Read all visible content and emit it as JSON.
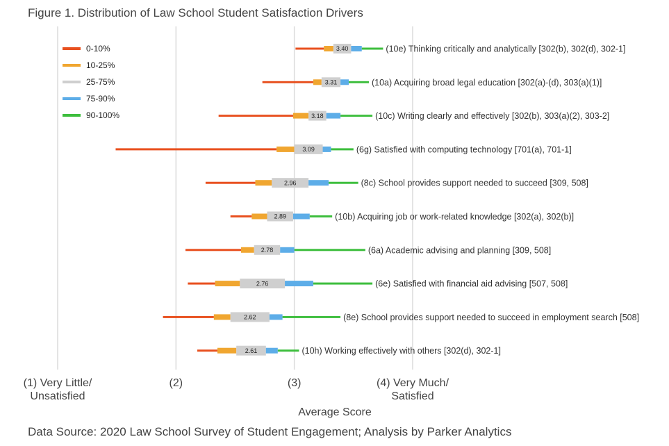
{
  "chart_data": {
    "type": "bar",
    "subtype": "percentile-range",
    "title": "Figure 1. Distribution of Law School Student Satisfaction Drivers",
    "xlabel": "Average Score",
    "source": "Data Source: 2020 Law School Survey of Student Engagement; Analysis by Parker Analytics",
    "xlim": [
      1,
      4
    ],
    "grid": "vertical",
    "legend_position": "top-left",
    "x_ticks": [
      {
        "value": 1,
        "label_lines": [
          "(1) Very Little/",
          "Unsatisfied"
        ]
      },
      {
        "value": 2,
        "label_lines": [
          "(2)"
        ]
      },
      {
        "value": 3,
        "label_lines": [
          "(3)"
        ]
      },
      {
        "value": 4,
        "label_lines": [
          "(4) Very Much/",
          "Satisfied"
        ]
      }
    ],
    "legend": [
      {
        "label": "0-10%",
        "color": "#E8501F"
      },
      {
        "label": "10-25%",
        "color": "#F0A630"
      },
      {
        "label": "25-75%",
        "color": "#CFCFCF"
      },
      {
        "label": "75-90%",
        "color": "#5DADE8"
      },
      {
        "label": "90-100%",
        "color": "#3DBE3D"
      }
    ],
    "series": [
      {
        "label": "(10e) Thinking critically and analytically [302(b), 302(d), 302-1]",
        "mean": 3.4,
        "mean_label": "3.40",
        "p0": 3.01,
        "p10": 3.25,
        "p25": 3.33,
        "p75": 3.48,
        "p90": 3.57,
        "p100": 3.75
      },
      {
        "label": "(10a) Acquiring broad legal education [302(a)-(d), 303(a)(1)]",
        "mean": 3.31,
        "mean_label": "3.31",
        "p0": 2.73,
        "p10": 3.16,
        "p25": 3.23,
        "p75": 3.39,
        "p90": 3.46,
        "p100": 3.63
      },
      {
        "label": "(10c) Writing clearly and effectively [302(b), 303(a)(2), 303-2]",
        "mean": 3.18,
        "mean_label": "3.18",
        "p0": 2.36,
        "p10": 2.99,
        "p25": 3.12,
        "p75": 3.27,
        "p90": 3.39,
        "p100": 3.66
      },
      {
        "label": "(6g) Satisfied with computing technology [701(a), 701-1]",
        "mean": 3.09,
        "mean_label": "3.09",
        "p0": 1.49,
        "p10": 2.85,
        "p25": 3.0,
        "p75": 3.24,
        "p90": 3.31,
        "p100": 3.5
      },
      {
        "label": "(8c) School provides support needed to succeed [309, 508]",
        "mean": 2.96,
        "mean_label": "2.96",
        "p0": 2.25,
        "p10": 2.67,
        "p25": 2.81,
        "p75": 3.12,
        "p90": 3.29,
        "p100": 3.54
      },
      {
        "label": "(10b) Acquiring job or work-related knowledge [302(a), 302(b)]",
        "mean": 2.89,
        "mean_label": "2.89",
        "p0": 2.46,
        "p10": 2.64,
        "p25": 2.77,
        "p75": 2.99,
        "p90": 3.13,
        "p100": 3.32
      },
      {
        "label": "(6a) Academic advising and planning [309, 508]",
        "mean": 2.78,
        "mean_label": "2.78",
        "p0": 2.08,
        "p10": 2.55,
        "p25": 2.66,
        "p75": 2.88,
        "p90": 3.0,
        "p100": 3.6
      },
      {
        "label": "(6e) Satisfied with financial aid advising [507, 508]",
        "mean": 2.76,
        "mean_label": "2.76",
        "p0": 2.1,
        "p10": 2.33,
        "p25": 2.54,
        "p75": 2.92,
        "p90": 3.16,
        "p100": 3.66
      },
      {
        "label": "(8e) School provides support needed to succeed in employment search [508]",
        "mean": 2.62,
        "mean_label": "2.62",
        "p0": 1.89,
        "p10": 2.32,
        "p25": 2.46,
        "p75": 2.79,
        "p90": 2.9,
        "p100": 3.39
      },
      {
        "label": "(10h) Working effectively with others [302(d), 302-1]",
        "mean": 2.61,
        "mean_label": "2.61",
        "p0": 2.18,
        "p10": 2.35,
        "p25": 2.51,
        "p75": 2.76,
        "p90": 2.86,
        "p100": 3.04
      }
    ]
  }
}
